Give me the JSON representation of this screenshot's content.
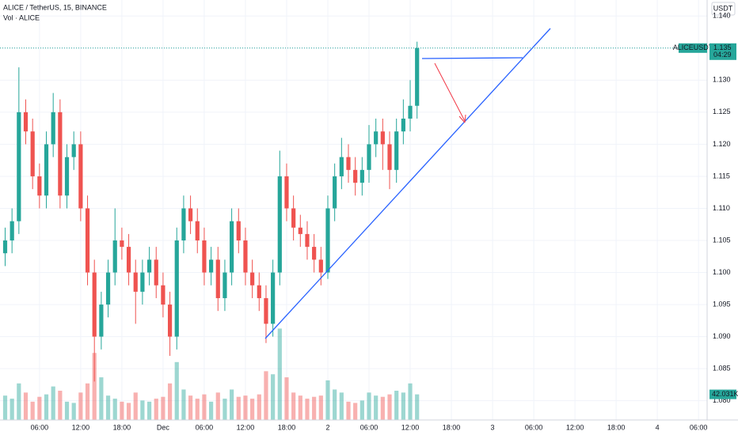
{
  "chart_data": {
    "type": "candlestick",
    "title": "ALICE / TetherUS, 15, BINANCE",
    "volume_title": "Vol · ALICE",
    "currency": "USDT",
    "symbol": "ALICEUSDT",
    "last_price": 1.135,
    "countdown": "04:29",
    "volume_label": "42.031K",
    "up_color": "#26a69a",
    "down_color": "#ef5350",
    "grid": true,
    "x": [
      1,
      2,
      3,
      4,
      5,
      6,
      7,
      8,
      9,
      10,
      11,
      12,
      13,
      14,
      15,
      16,
      17,
      18,
      19,
      20,
      21,
      22,
      23,
      24,
      25,
      26,
      27,
      28,
      29,
      30,
      31,
      32,
      33,
      34,
      35,
      36,
      37,
      38,
      39,
      40,
      41,
      42,
      43,
      44,
      45,
      46,
      47,
      48,
      49,
      50,
      51,
      52,
      53,
      54,
      55,
      56,
      57,
      58,
      59,
      60,
      61
    ],
    "open": [
      1.103,
      1.105,
      1.108,
      1.125,
      1.122,
      1.115,
      1.112,
      1.12,
      1.125,
      1.112,
      1.118,
      1.12,
      1.11,
      1.1,
      1.09,
      1.095,
      1.1,
      1.105,
      1.104,
      1.1,
      1.097,
      1.1,
      1.102,
      1.098,
      1.095,
      1.09,
      1.105,
      1.11,
      1.108,
      1.105,
      1.1,
      1.102,
      1.096,
      1.1,
      1.108,
      1.105,
      1.1,
      1.098,
      1.096,
      1.092,
      1.1,
      1.115,
      1.11,
      1.107,
      1.106,
      1.104,
      1.102,
      1.1,
      1.11,
      1.115,
      1.118,
      1.116,
      1.114,
      1.116,
      1.12,
      1.122,
      1.12,
      1.116,
      1.122,
      1.124,
      1.126
    ],
    "high": [
      1.107,
      1.11,
      1.132,
      1.127,
      1.124,
      1.117,
      1.122,
      1.128,
      1.127,
      1.12,
      1.122,
      1.122,
      1.112,
      1.102,
      1.097,
      1.102,
      1.11,
      1.107,
      1.106,
      1.102,
      1.102,
      1.104,
      1.104,
      1.1,
      1.097,
      1.107,
      1.112,
      1.112,
      1.11,
      1.107,
      1.104,
      1.104,
      1.102,
      1.11,
      1.11,
      1.107,
      1.102,
      1.1,
      1.098,
      1.102,
      1.119,
      1.117,
      1.112,
      1.109,
      1.108,
      1.106,
      1.104,
      1.112,
      1.117,
      1.121,
      1.12,
      1.118,
      1.118,
      1.123,
      1.124,
      1.124,
      1.122,
      1.124,
      1.127,
      1.13,
      1.136
    ],
    "low": [
      1.101,
      1.103,
      1.106,
      1.12,
      1.113,
      1.11,
      1.11,
      1.118,
      1.11,
      1.11,
      1.116,
      1.108,
      1.098,
      1.083,
      1.088,
      1.093,
      1.098,
      1.102,
      1.098,
      1.092,
      1.095,
      1.098,
      1.096,
      1.093,
      1.087,
      1.088,
      1.103,
      1.106,
      1.103,
      1.098,
      1.098,
      1.094,
      1.094,
      1.098,
      1.103,
      1.098,
      1.096,
      1.094,
      1.089,
      1.09,
      1.098,
      1.108,
      1.105,
      1.104,
      1.102,
      1.1,
      1.098,
      1.099,
      1.108,
      1.113,
      1.114,
      1.112,
      1.112,
      1.114,
      1.118,
      1.116,
      1.113,
      1.114,
      1.12,
      1.122,
      1.124
    ],
    "close": [
      1.105,
      1.108,
      1.125,
      1.122,
      1.115,
      1.112,
      1.12,
      1.125,
      1.112,
      1.118,
      1.12,
      1.11,
      1.1,
      1.09,
      1.095,
      1.1,
      1.105,
      1.104,
      1.1,
      1.097,
      1.1,
      1.102,
      1.098,
      1.095,
      1.09,
      1.105,
      1.11,
      1.108,
      1.105,
      1.1,
      1.102,
      1.096,
      1.1,
      1.108,
      1.105,
      1.1,
      1.098,
      1.096,
      1.092,
      1.1,
      1.115,
      1.11,
      1.107,
      1.106,
      1.104,
      1.102,
      1.1,
      1.11,
      1.115,
      1.118,
      1.116,
      1.114,
      1.116,
      1.12,
      1.122,
      1.12,
      1.116,
      1.122,
      1.124,
      1.126,
      1.135
    ],
    "volume": [
      40,
      35,
      60,
      45,
      30,
      38,
      42,
      55,
      48,
      30,
      28,
      45,
      60,
      110,
      70,
      40,
      35,
      30,
      28,
      45,
      32,
      30,
      35,
      38,
      60,
      95,
      50,
      40,
      35,
      42,
      30,
      45,
      35,
      50,
      38,
      40,
      35,
      42,
      80,
      75,
      150,
      70,
      45,
      40,
      35,
      38,
      40,
      65,
      50,
      45,
      30,
      28,
      32,
      45,
      40,
      38,
      42,
      48,
      45,
      60,
      42.031
    ],
    "vlim": [
      0,
      170
    ],
    "xlim": [
      0.25,
      103.25
    ],
    "ylim": [
      1.077,
      1.1425
    ],
    "xticks": [
      {
        "value": 6,
        "label": "06:00"
      },
      {
        "value": 12,
        "label": "12:00"
      },
      {
        "value": 18,
        "label": "18:00"
      },
      {
        "value": 24,
        "label": "Dec"
      },
      {
        "value": 30,
        "label": "06:00"
      },
      {
        "value": 36,
        "label": "12:00"
      },
      {
        "value": 42,
        "label": "18:00"
      },
      {
        "value": 48,
        "label": "2"
      },
      {
        "value": 54,
        "label": "06:00"
      },
      {
        "value": 60,
        "label": "12:00"
      },
      {
        "value": 66,
        "label": "18:00"
      },
      {
        "value": 72,
        "label": "3"
      },
      {
        "value": 78,
        "label": "06:00"
      },
      {
        "value": 84,
        "label": "12:00"
      },
      {
        "value": 90,
        "label": "18:00"
      },
      {
        "value": 96,
        "label": "4"
      },
      {
        "value": 102,
        "label": "06:00"
      }
    ],
    "yticks": [
      {
        "value": 1.08,
        "label": "1.080"
      },
      {
        "value": 1.085,
        "label": "1.085"
      },
      {
        "value": 1.09,
        "label": "1.090"
      },
      {
        "value": 1.095,
        "label": "1.095"
      },
      {
        "value": 1.1,
        "label": "1.100"
      },
      {
        "value": 1.105,
        "label": "1.105"
      },
      {
        "value": 1.11,
        "label": "1.110"
      },
      {
        "value": 1.115,
        "label": "1.115"
      },
      {
        "value": 1.12,
        "label": "1.120"
      },
      {
        "value": 1.125,
        "label": "1.125"
      },
      {
        "value": 1.13,
        "label": "1.130"
      },
      {
        "value": 1.135,
        "label": "1.135"
      },
      {
        "value": 1.14,
        "label": "1.140"
      }
    ]
  }
}
